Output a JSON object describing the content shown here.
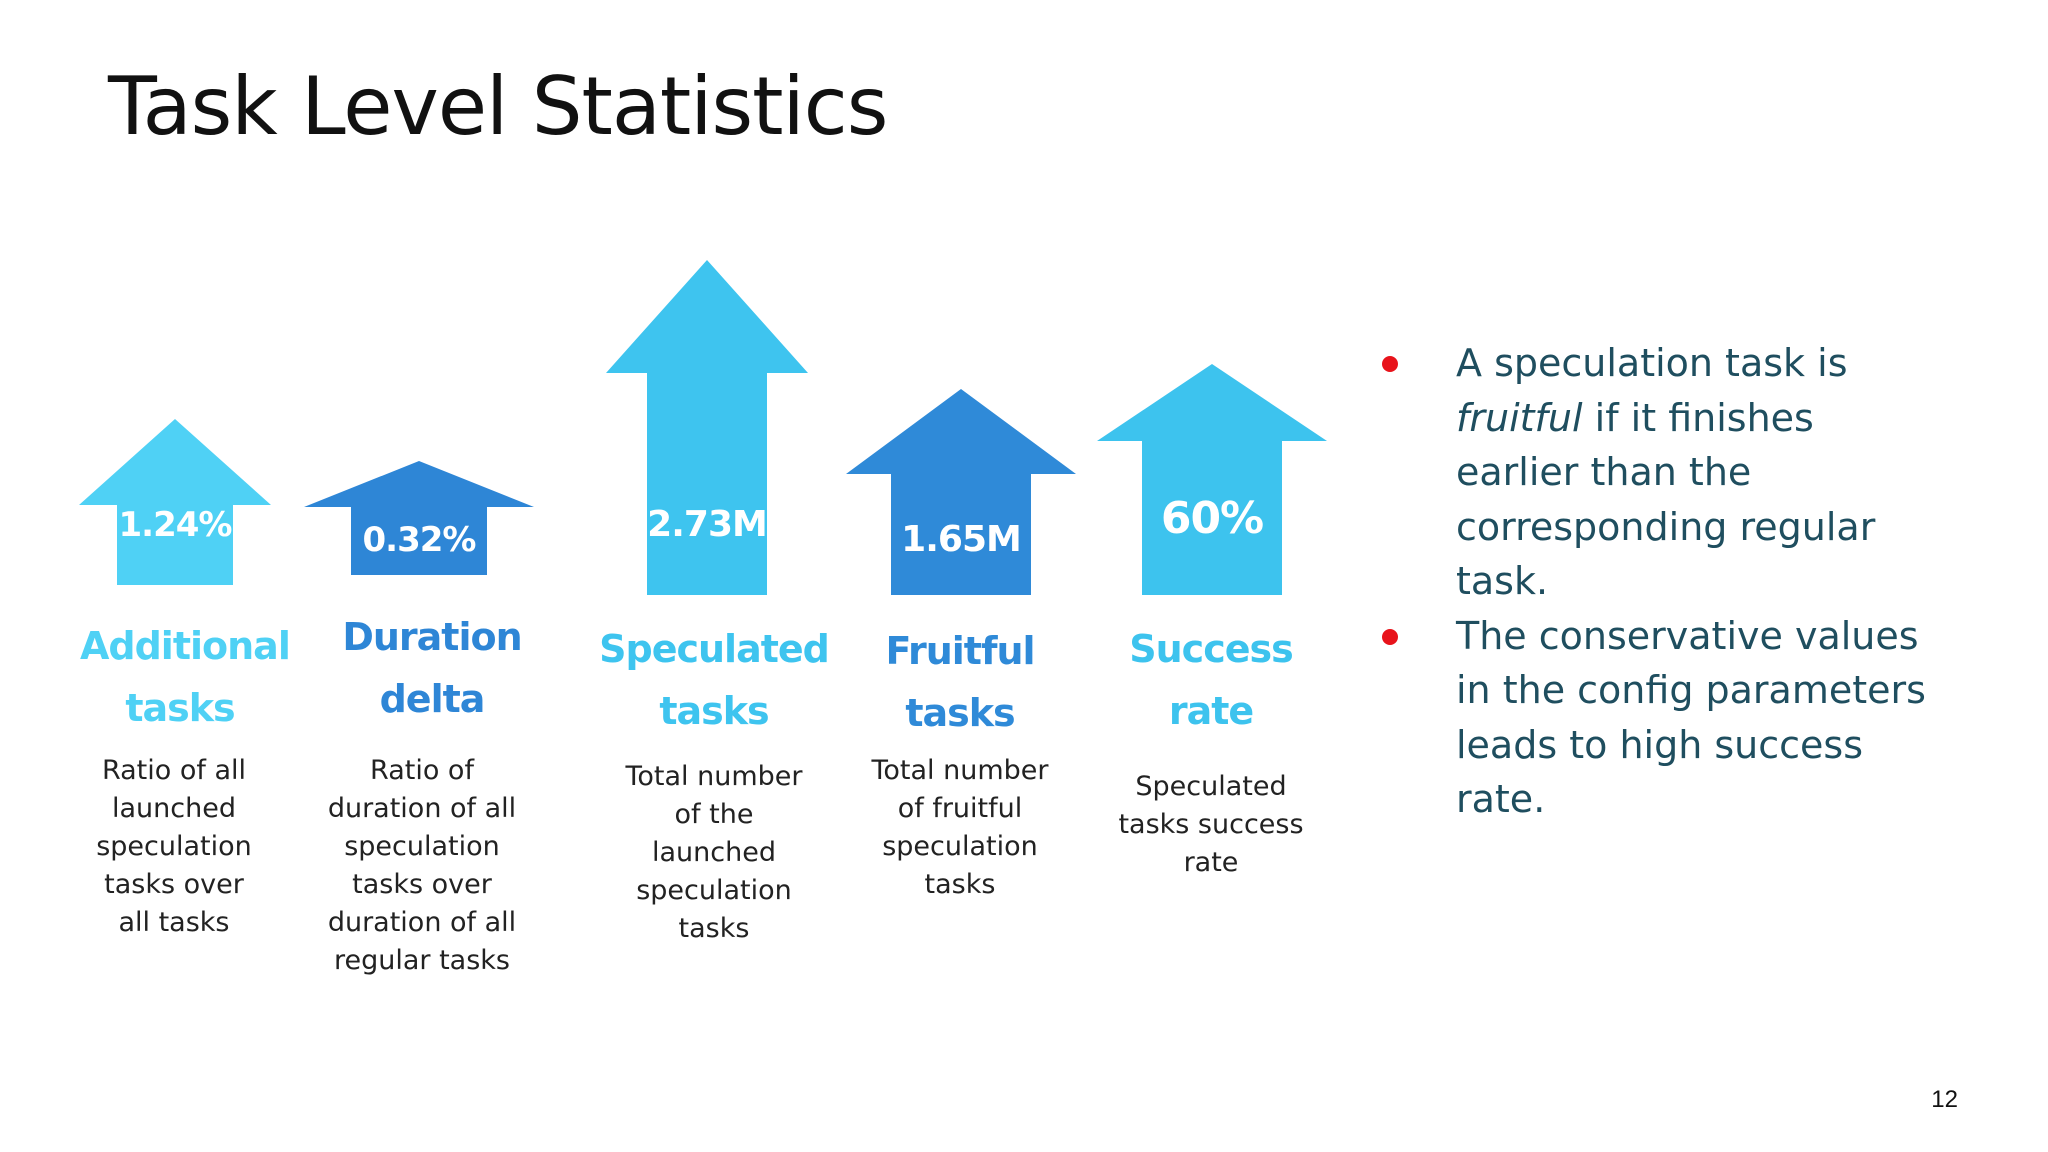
{
  "slide": {
    "title": "Task Level Statistics",
    "page_number": "12"
  },
  "stats": [
    {
      "value": "1.24%",
      "title_line1": "Additional",
      "title_line2": "tasks",
      "description_lines": [
        "Ratio of all",
        "launched",
        "speculation",
        "tasks over",
        "all tasks"
      ],
      "color": "#4fd1f5",
      "title_color": "#4fd1f5"
    },
    {
      "value": "0.32%",
      "title_line1": "Duration",
      "title_line2": "delta",
      "description_lines": [
        "Ratio of",
        "duration of all",
        "speculation",
        "tasks over",
        "duration of all",
        "regular tasks"
      ],
      "color": "#2e86d6",
      "title_color": "#2e86d6"
    },
    {
      "value": "2.73M",
      "title_line1": "Speculated",
      "title_line2": "tasks",
      "description_lines": [
        "Total number",
        "of the",
        "launched",
        "speculation",
        "tasks"
      ],
      "color": "#3ec4ef",
      "title_color": "#3ec4ef"
    },
    {
      "value": "1.65M",
      "title_line1": "Fruitful",
      "title_line2": "tasks",
      "description_lines": [
        "Total number",
        "of fruitful",
        "speculation",
        "tasks"
      ],
      "color": "#2f8ad8",
      "title_color": "#2f8ad8"
    },
    {
      "value": "60%",
      "title_line1": "Success",
      "title_line2": "rate",
      "description_lines": [
        "Speculated",
        "tasks success",
        "rate"
      ],
      "color": "#3dc3ee",
      "title_color": "#3dc3ee"
    }
  ],
  "bullets": [
    {
      "lines": [
        "A speculation task is",
        "fruitful if it finishes",
        "earlier than the",
        "corresponding regular",
        "task."
      ],
      "emphasis_word": "fruitful"
    },
    {
      "lines": [
        "The conservative values",
        "in the config parameters",
        "leads to high success",
        "rate."
      ]
    }
  ],
  "colors": {
    "bullet_dot": "#e8131b",
    "bullet_text": "#1f4e5f",
    "title_text": "#111111"
  }
}
